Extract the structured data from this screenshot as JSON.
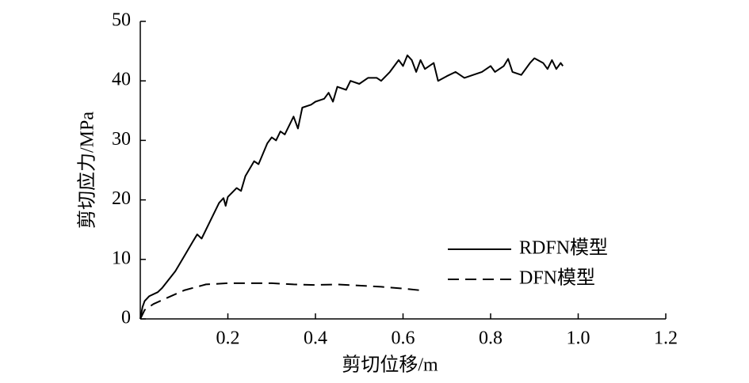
{
  "chart_data": {
    "type": "line",
    "xlabel": "剪切位移/m",
    "ylabel": "剪切应力/MPa",
    "xlim": [
      0,
      1.2
    ],
    "ylim": [
      0,
      50
    ],
    "xticks": [
      0.2,
      0.4,
      0.6,
      0.8,
      {
        "value": 1,
        "label": "1.0"
      },
      1.2
    ],
    "yticks": [
      0,
      10,
      20,
      30,
      40,
      50
    ],
    "legend": "lower right",
    "series": [
      {
        "name": "RDFN模型",
        "color": "#000000",
        "dash": "solid",
        "x": [
          0,
          0.005,
          0.01,
          0.02,
          0.04,
          0.05,
          0.08,
          0.1,
          0.12,
          0.13,
          0.14,
          0.16,
          0.18,
          0.19,
          0.195,
          0.2,
          0.22,
          0.23,
          0.24,
          0.26,
          0.27,
          0.29,
          0.3,
          0.31,
          0.32,
          0.33,
          0.35,
          0.36,
          0.37,
          0.39,
          0.4,
          0.42,
          0.43,
          0.44,
          0.45,
          0.47,
          0.48,
          0.5,
          0.52,
          0.54,
          0.55,
          0.57,
          0.59,
          0.6,
          0.61,
          0.62,
          0.63,
          0.64,
          0.65,
          0.67,
          0.68,
          0.7,
          0.72,
          0.74,
          0.76,
          0.78,
          0.8,
          0.81,
          0.83,
          0.84,
          0.85,
          0.87,
          0.89,
          0.9,
          0.92,
          0.93,
          0.94,
          0.95,
          0.96,
          0.965
        ],
        "values": [
          0,
          2,
          3,
          3.8,
          4.5,
          5.2,
          8,
          10.5,
          13,
          14.2,
          13.5,
          16.5,
          19.5,
          20.3,
          19,
          20.5,
          22,
          21.5,
          24,
          26.5,
          26,
          29.5,
          30.5,
          30,
          31.5,
          31,
          34,
          32,
          35.5,
          36,
          36.5,
          37,
          38,
          36.5,
          39,
          38.5,
          40,
          39.5,
          40.5,
          40.5,
          40,
          41.5,
          43.5,
          42.5,
          44.3,
          43.5,
          41.5,
          43.5,
          42,
          43,
          40,
          40.8,
          41.5,
          40.5,
          41,
          41.5,
          42.5,
          41.5,
          42.5,
          43.7,
          41.5,
          41,
          43,
          43.8,
          43,
          42,
          43.5,
          42,
          43,
          42.5
        ]
      },
      {
        "name": "DFN模型",
        "color": "#000000",
        "dash": "dashed",
        "x": [
          0,
          0.01,
          0.03,
          0.06,
          0.1,
          0.15,
          0.2,
          0.3,
          0.35,
          0.4,
          0.45,
          0.5,
          0.55,
          0.6,
          0.64
        ],
        "values": [
          0,
          1.5,
          2.5,
          3.5,
          4.8,
          5.8,
          6,
          6,
          5.8,
          5.7,
          5.8,
          5.6,
          5.4,
          5.1,
          4.8
        ]
      }
    ]
  }
}
